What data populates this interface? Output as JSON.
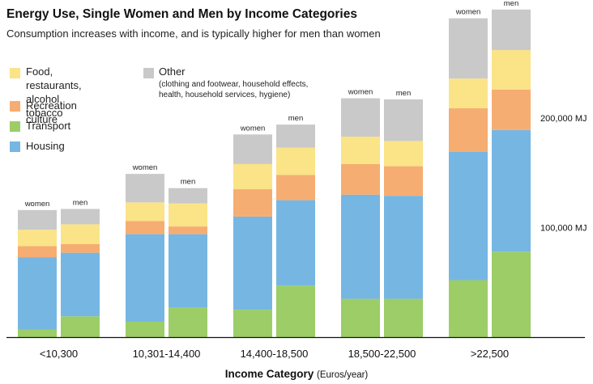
{
  "title": "Energy Use, Single Women and Men by Income Categories",
  "subtitle": "Consumption increases with income, and is typically higher for men than women",
  "legend": [
    {
      "key": "food",
      "label": "Food, restaurants,\nalcohol, tobacco",
      "color": "#fbe387"
    },
    {
      "key": "other",
      "label": "Other",
      "note": "(clothing and footwear, household effects,\nhealth, household services, hygiene)",
      "color": "#c9c9c9"
    },
    {
      "key": "recreation",
      "label": "Recreation culture",
      "color": "#f5ad72"
    },
    {
      "key": "transport",
      "label": "Transport",
      "color": "#9ccd67"
    },
    {
      "key": "housing",
      "label": "Housing",
      "color": "#76b6e3"
    }
  ],
  "x_axis": {
    "label": "Income Category",
    "unit": "(Euros/year)"
  },
  "chart_data": {
    "type": "bar",
    "stacked": true,
    "title": "Energy Use, Single Women and Men by Income Categories",
    "subtitle": "Consumption increases with income, and is typically higher for men than women",
    "xlabel": "Income Category (Euros/year)",
    "ylabel": "",
    "ylim": [
      0,
      290000
    ],
    "y_ticks": [
      {
        "value": 100000,
        "label": "100,000 MJ"
      },
      {
        "value": 200000,
        "label": "200,000 MJ"
      }
    ],
    "categories": [
      "<10,300",
      "10,301-14,400",
      "14,400-18,500",
      "18,500-22,500",
      ">22,500"
    ],
    "bar_labels": [
      "women",
      "men"
    ],
    "stack_order": [
      "Transport",
      "Housing",
      "Recreation culture",
      "Food, restaurants, alcohol, tobacco",
      "Other"
    ],
    "series": [
      {
        "group": "women",
        "name": "Transport",
        "key": "transport",
        "values": [
          7000,
          14000,
          25000,
          35000,
          52000
        ]
      },
      {
        "group": "women",
        "name": "Housing",
        "key": "housing",
        "values": [
          66000,
          80000,
          85000,
          95000,
          117000
        ]
      },
      {
        "group": "women",
        "name": "Recreation culture",
        "key": "recreation",
        "values": [
          10000,
          12000,
          25000,
          28000,
          40000
        ]
      },
      {
        "group": "women",
        "name": "Food, restaurants, alcohol, tobacco",
        "key": "food",
        "values": [
          15000,
          17000,
          23000,
          25000,
          27000
        ]
      },
      {
        "group": "women",
        "name": "Other",
        "key": "other",
        "values": [
          18000,
          26000,
          27000,
          35000,
          55000
        ]
      },
      {
        "group": "men",
        "name": "Transport",
        "key": "transport",
        "values": [
          19000,
          27000,
          47000,
          35000,
          78000
        ]
      },
      {
        "group": "men",
        "name": "Housing",
        "key": "housing",
        "values": [
          58000,
          67000,
          78000,
          94000,
          111000
        ]
      },
      {
        "group": "men",
        "name": "Recreation culture",
        "key": "recreation",
        "values": [
          8000,
          7000,
          23000,
          27000,
          37000
        ]
      },
      {
        "group": "men",
        "name": "Food, restaurants, alcohol, tobacco",
        "key": "food",
        "values": [
          18000,
          21000,
          25000,
          23000,
          36000
        ]
      },
      {
        "group": "men",
        "name": "Other",
        "key": "other",
        "values": [
          14000,
          14000,
          21000,
          38000,
          37000
        ]
      }
    ],
    "grid": false,
    "legend_position": "top-left"
  }
}
